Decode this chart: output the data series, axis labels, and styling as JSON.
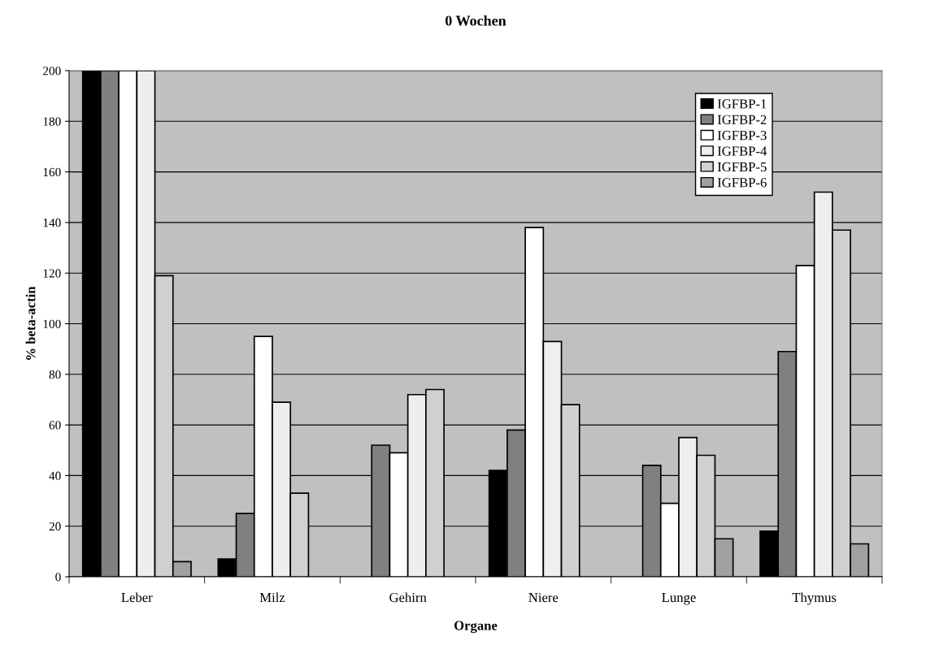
{
  "chart_data": {
    "type": "bar",
    "title": "0 Wochen",
    "xlabel": "Organe",
    "ylabel": "% beta-actin",
    "categories": [
      "Leber",
      "Milz",
      "Gehirn",
      "Niere",
      "Lunge",
      "Thymus"
    ],
    "series": [
      {
        "name": "IGFBP-1",
        "color": "#000000",
        "values": [
          200,
          7,
          null,
          42,
          null,
          18
        ]
      },
      {
        "name": "IGFBP-2",
        "color": "#808080",
        "values": [
          200,
          25,
          52,
          58,
          44,
          89
        ]
      },
      {
        "name": "IGFBP-3",
        "color": "#ffffff",
        "values": [
          200,
          95,
          49,
          138,
          29,
          123
        ]
      },
      {
        "name": "IGFBP-4",
        "color": "#eeeeee",
        "values": [
          200,
          69,
          72,
          93,
          55,
          152
        ]
      },
      {
        "name": "IGFBP-5",
        "color": "#d0d0d0",
        "values": [
          119,
          33,
          74,
          68,
          48,
          137
        ]
      },
      {
        "name": "IGFBP-6",
        "color": "#a0a0a0",
        "values": [
          6,
          null,
          null,
          null,
          15,
          13
        ]
      }
    ],
    "ylim": [
      0,
      200
    ],
    "yticks": [
      0,
      20,
      40,
      60,
      80,
      100,
      120,
      140,
      160,
      180,
      200
    ],
    "grid": "y",
    "legend": "top right"
  }
}
